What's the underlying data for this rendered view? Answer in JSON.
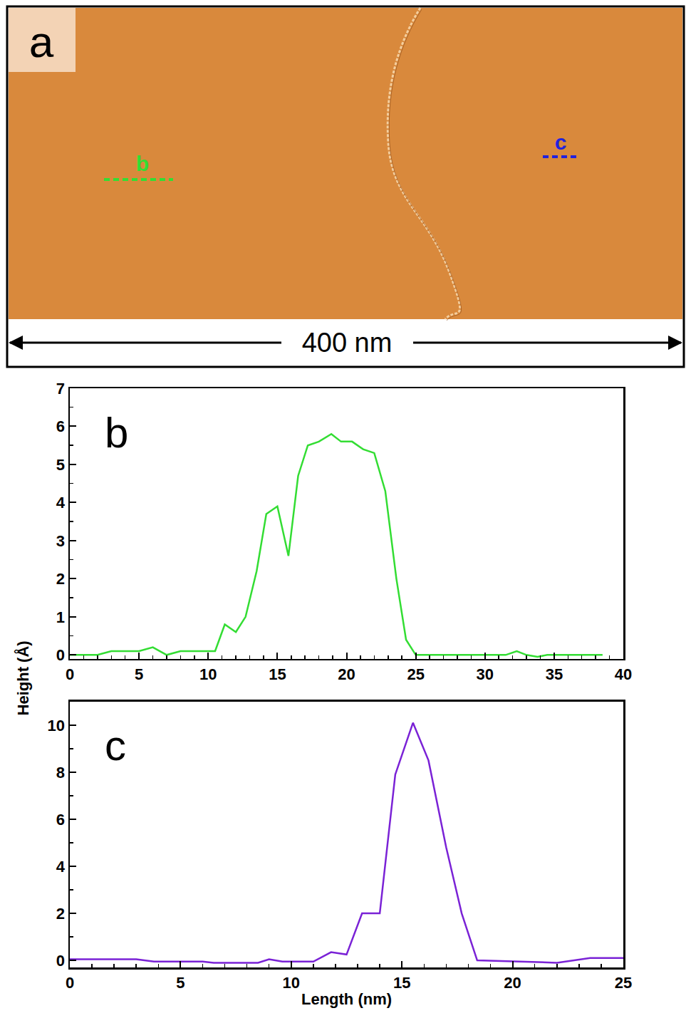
{
  "panel_a": {
    "label": "a",
    "scale_bar": "400 nm",
    "profile_markers": [
      {
        "text": "b",
        "color": "#33dd33"
      },
      {
        "text": "c",
        "color": "#2222dd"
      }
    ]
  },
  "shared_y_label": "Height (Å)",
  "chart_data": [
    {
      "type": "line",
      "panel": "b",
      "color": "#33dd33",
      "x": [
        0,
        2,
        3,
        5,
        6,
        7,
        8,
        10.5,
        11.2,
        12,
        12.7,
        13.5,
        14.2,
        15,
        15.8,
        16.5,
        17.2,
        18,
        18.9,
        19.6,
        20.4,
        21.2,
        22,
        22.8,
        23.6,
        24.3,
        25,
        30,
        31.5,
        32.3,
        33,
        33.8,
        34.5,
        38.5
      ],
      "values": [
        0,
        0,
        0.1,
        0.1,
        0.2,
        0,
        0.1,
        0.1,
        0.8,
        0.6,
        1.0,
        2.2,
        3.7,
        3.9,
        2.6,
        4.7,
        5.5,
        5.6,
        5.8,
        5.6,
        5.6,
        5.4,
        5.3,
        4.3,
        2.0,
        0.4,
        0,
        0,
        0,
        0.1,
        0,
        -0.05,
        0,
        0
      ],
      "xlim": [
        0,
        40
      ],
      "ylim": [
        -0.1,
        7
      ],
      "xticks": [
        0,
        5,
        10,
        15,
        20,
        25,
        30,
        35,
        40
      ],
      "yticks": [
        0,
        1,
        2,
        3,
        4,
        5,
        6,
        7
      ],
      "grid": false
    },
    {
      "type": "line",
      "panel": "c",
      "color": "#7a22d6",
      "x_label": "Length (nm)",
      "x": [
        0,
        3,
        3.8,
        6,
        6.5,
        8.5,
        9,
        9.6,
        11,
        11.8,
        12.5,
        13.2,
        14,
        14.7,
        15.5,
        16.2,
        17,
        17.7,
        18.4,
        22,
        23.5,
        25
      ],
      "values": [
        0.05,
        0.05,
        -0.05,
        -0.05,
        -0.1,
        -0.1,
        0.05,
        -0.05,
        -0.05,
        0.35,
        0.25,
        2.0,
        2.0,
        7.9,
        10.1,
        8.5,
        4.8,
        2.0,
        0,
        -0.1,
        0.1,
        0.1
      ],
      "xlim": [
        0,
        25
      ],
      "ylim": [
        -0.3,
        11
      ],
      "xticks": [
        0,
        5,
        10,
        15,
        20,
        25
      ],
      "yticks": [
        0,
        2,
        4,
        6,
        8,
        10
      ],
      "grid": false
    }
  ]
}
